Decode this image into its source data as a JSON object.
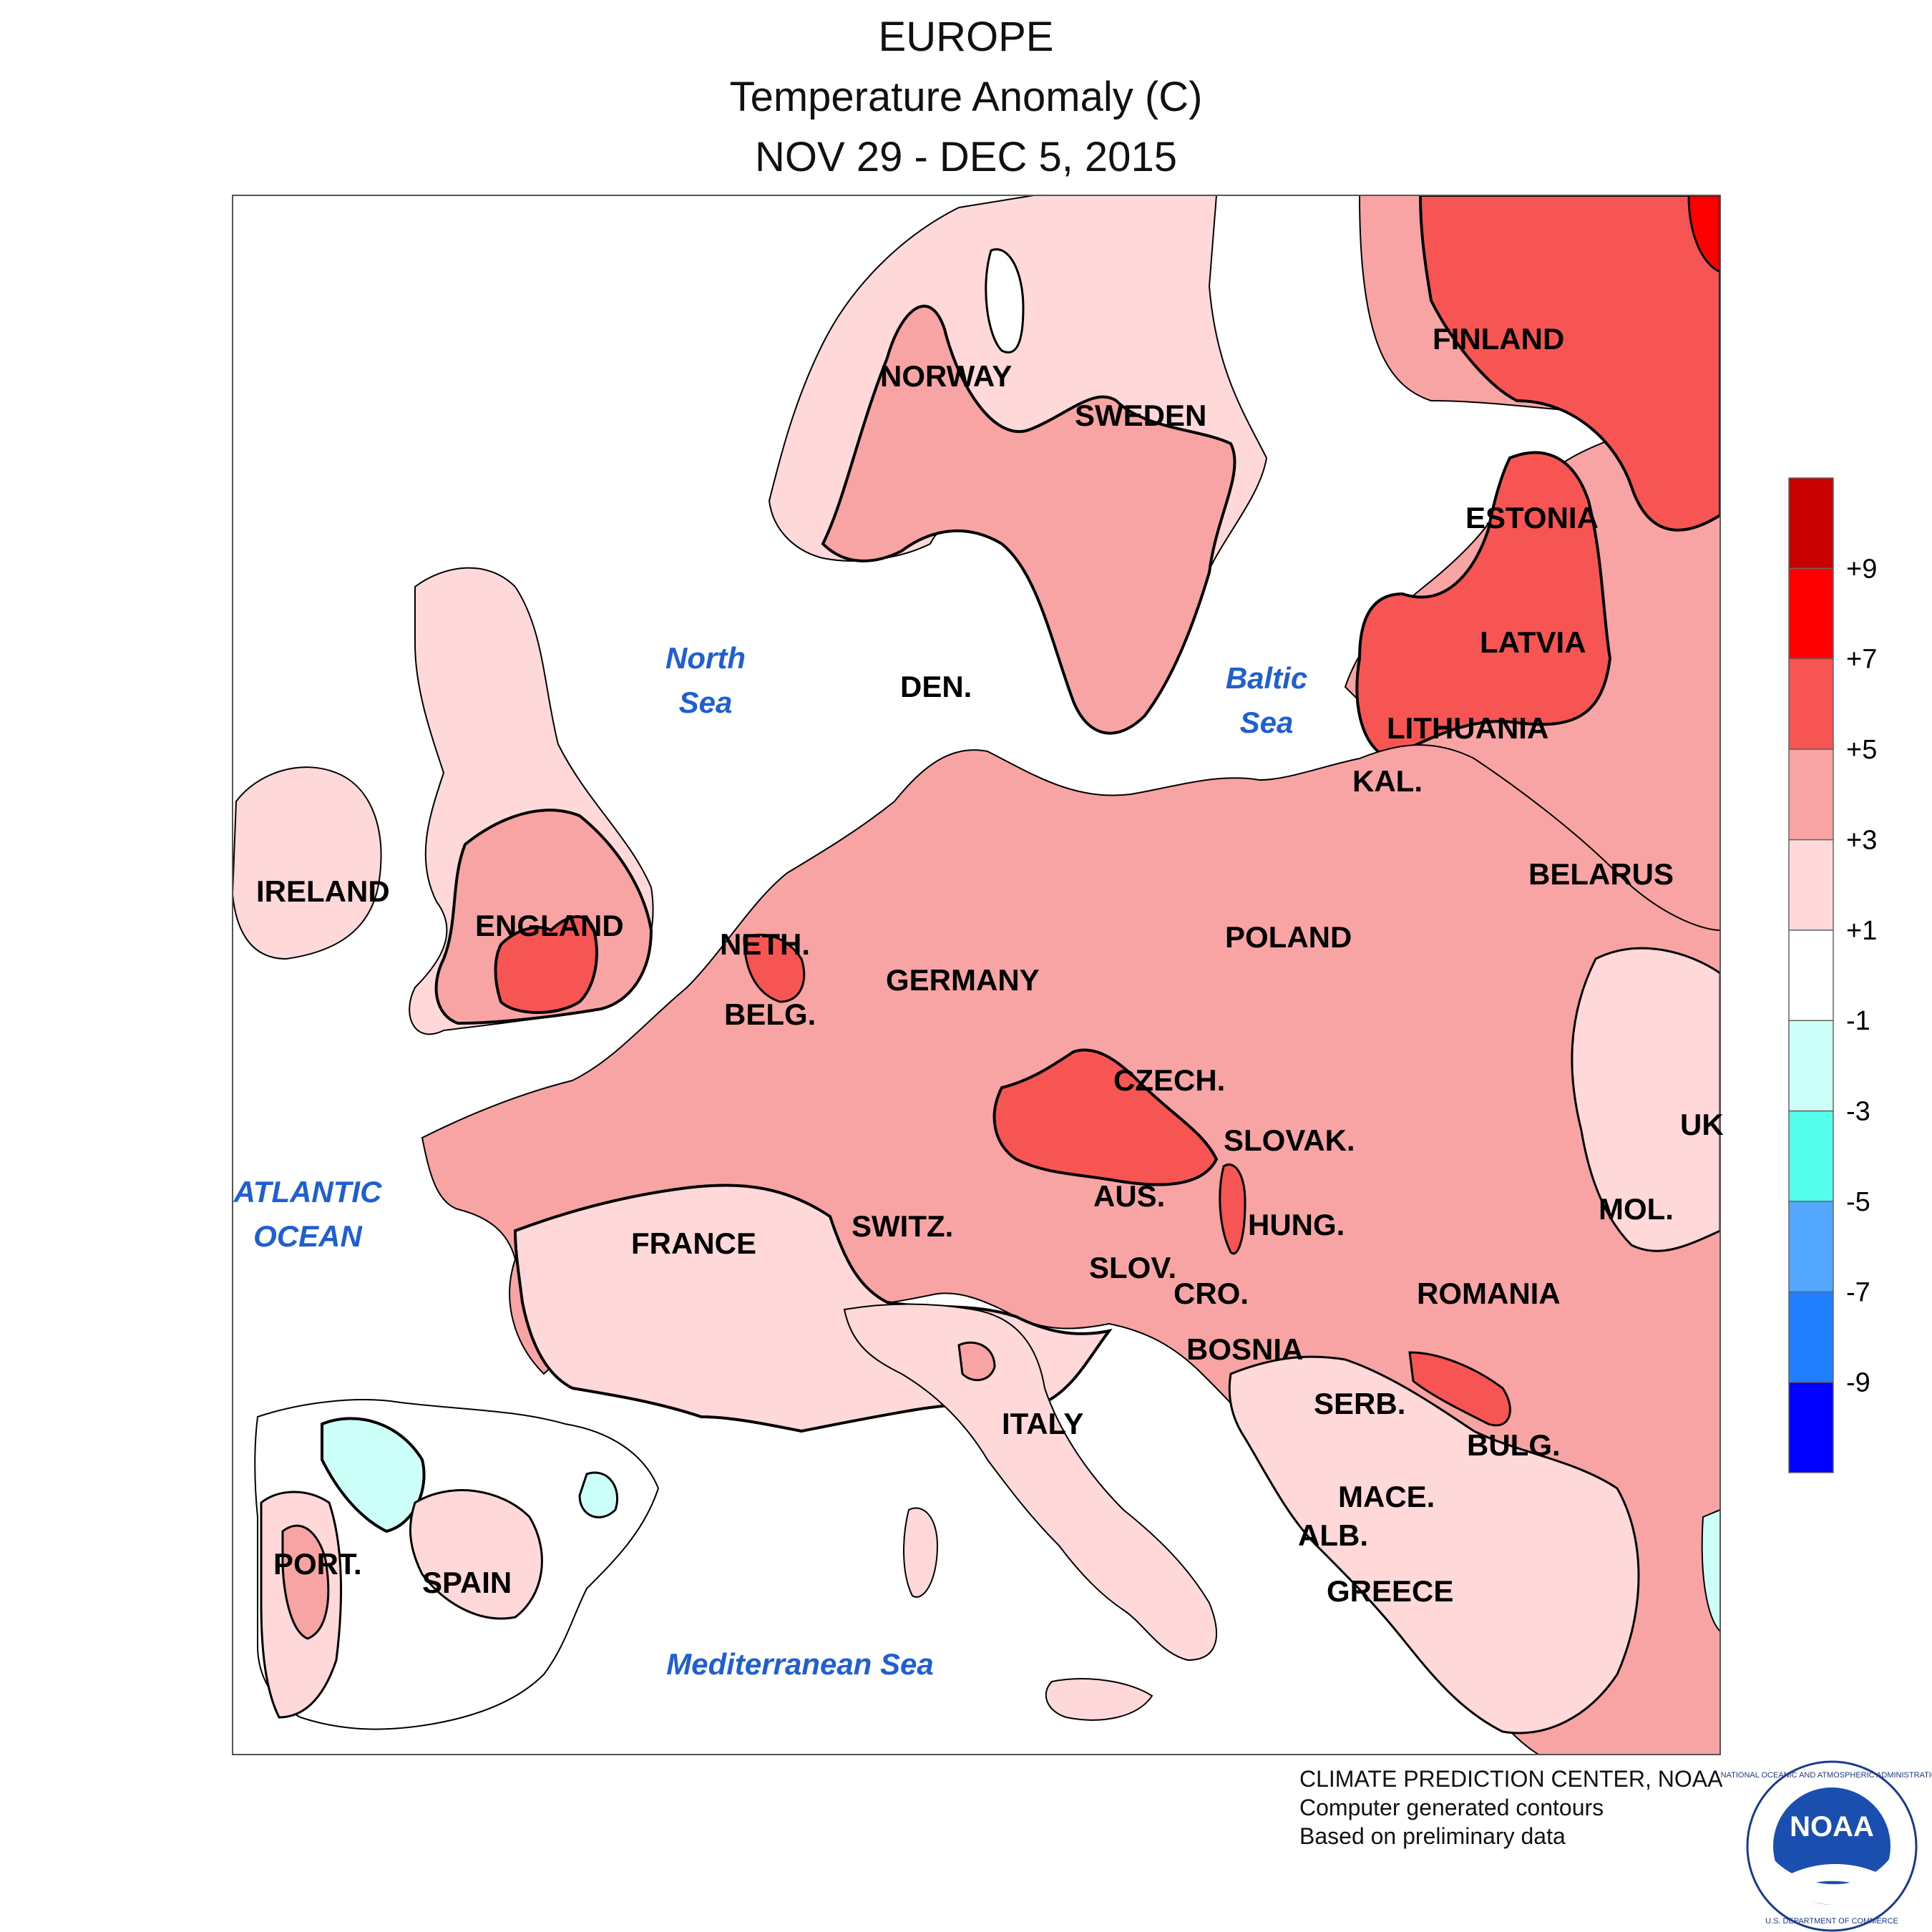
{
  "header": {
    "region": "EUROPE",
    "variable": "Temperature Anomaly (C)",
    "period": "NOV 29 - DEC 5, 2015"
  },
  "legend": {
    "bins": [
      {
        "color": "#0000ff"
      },
      {
        "color": "#1f7fff"
      },
      {
        "color": "#55a8ff"
      },
      {
        "color": "#55ffee"
      },
      {
        "color": "#cdfff9"
      },
      {
        "color": "#ffffff"
      },
      {
        "color": "#ffd9d9"
      },
      {
        "color": "#f9a4a4"
      },
      {
        "color": "#f75454"
      },
      {
        "color": "#ff0000"
      },
      {
        "color": "#c80000"
      }
    ],
    "ticks": [
      "-9",
      "-7",
      "-5",
      "-3",
      "-1",
      "+1",
      "+3",
      "+5",
      "+7",
      "+9"
    ]
  },
  "countries": [
    "NORWAY",
    "SWEDEN",
    "FINLAND",
    "ESTONIA",
    "LATVIA",
    "LITHUANIA",
    "KAL.",
    "BELARUS",
    "DEN.",
    "IRELAND",
    "ENGLAND",
    "NETH.",
    "BELG.",
    "GERMANY",
    "POLAND",
    "CZECH.",
    "SLOVAK.",
    "AUS.",
    "HUNG.",
    "SWITZ.",
    "FRANCE",
    "SLOV.",
    "CRO.",
    "ROMANIA",
    "MOL.",
    "UK",
    "BOSNIA",
    "SERB.",
    "BULG.",
    "ITALY",
    "MACE.",
    "ALB.",
    "GREECE",
    "PORT.",
    "SPAIN"
  ],
  "seas": {
    "north_1": "North",
    "north_2": "Sea",
    "baltic_1": "Baltic",
    "baltic_2": "Sea",
    "atlantic_1": "ATLANTIC",
    "atlantic_2": "OCEAN",
    "med": "Mediterranean Sea"
  },
  "footer": {
    "line1": "CLIMATE PREDICTION CENTER, NOAA",
    "line2": "Computer generated contours",
    "line3": "Based on preliminary data",
    "logo_text": "NOAA",
    "logo_ring_top": "NATIONAL OCEANIC AND ATMOSPHERIC ADMINISTRATION",
    "logo_ring_bottom": "U.S. DEPARTMENT OF COMMERCE"
  }
}
